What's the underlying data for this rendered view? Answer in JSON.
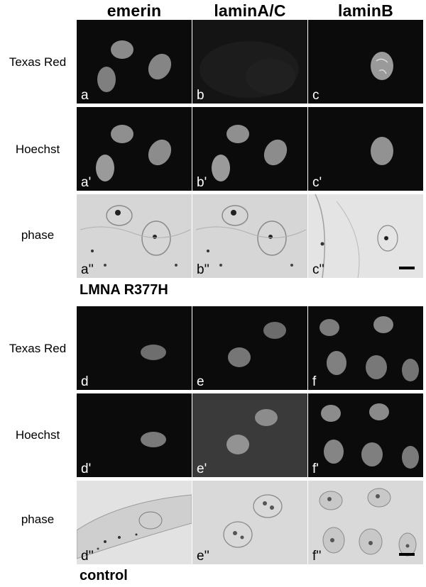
{
  "columns": [
    "emerin",
    "laminA/C",
    "laminB"
  ],
  "rows": [
    "Texas Red",
    "Hoechst",
    "phase"
  ],
  "sections": [
    {
      "title": "LMNA R377H",
      "panels": [
        [
          "a",
          "b",
          "c"
        ],
        [
          "a'",
          "b'",
          "c'"
        ],
        [
          "a''",
          "b''",
          "c''"
        ]
      ]
    },
    {
      "title": "control",
      "panels": [
        [
          "d",
          "e",
          "f"
        ],
        [
          "d'",
          "e'",
          "f'"
        ],
        [
          "d''",
          "e''",
          "f''"
        ]
      ]
    }
  ]
}
